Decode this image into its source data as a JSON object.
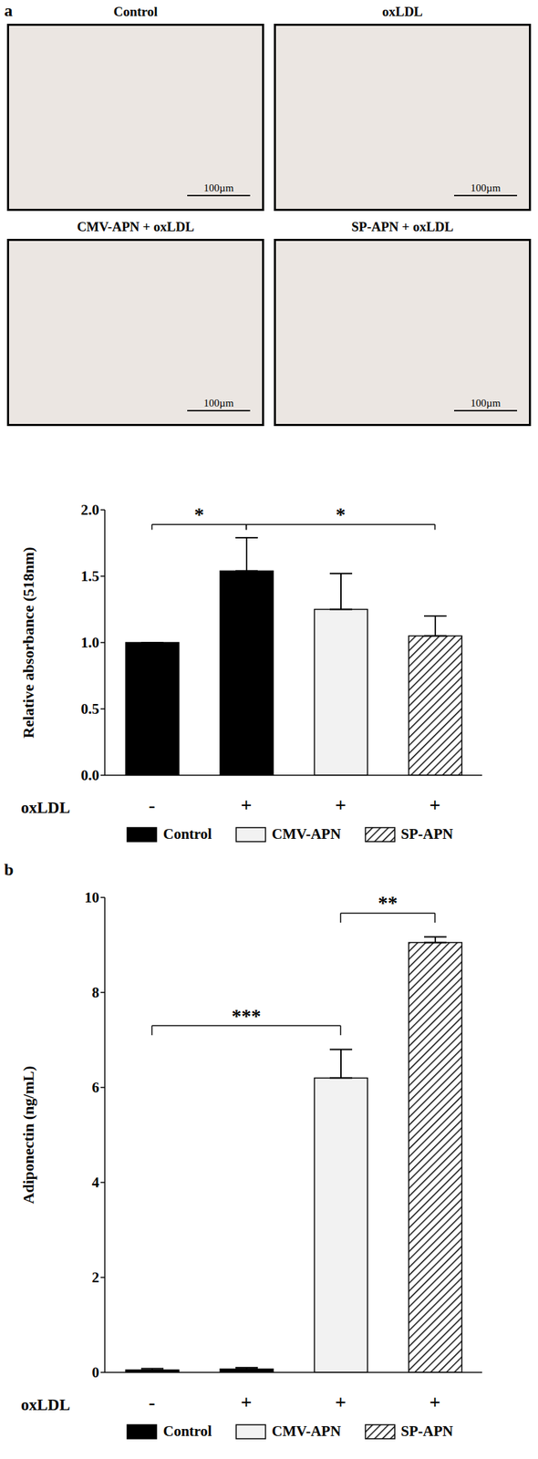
{
  "panel_labels": [
    "a",
    "b"
  ],
  "images": [
    {
      "title": "Control",
      "scale_bar": "100µm"
    },
    {
      "title": "oxLDL",
      "scale_bar": "100µm"
    },
    {
      "title": "CMV-APN + oxLDL",
      "scale_bar": "100µm"
    },
    {
      "title": "SP-APN + oxLDL",
      "scale_bar": "100µm"
    }
  ],
  "chart_data": [
    {
      "type": "bar",
      "x_label": "oxLDL",
      "y_label": "Relative absorbance (518nm)",
      "categories": [
        "-",
        "+",
        "+",
        "+"
      ],
      "series": [
        {
          "name": "Control",
          "color": "#000000",
          "values": [
            1.0,
            1.54,
            null,
            null
          ],
          "errors": [
            0,
            0.25,
            null,
            null
          ]
        },
        {
          "name": "CMV-APN",
          "color": "#f2f2f2",
          "values": [
            null,
            null,
            1.25,
            null
          ],
          "errors": [
            null,
            null,
            0.27,
            null
          ]
        },
        {
          "name": "SP-APN",
          "color": "#000000",
          "values": [
            null,
            null,
            null,
            1.05
          ],
          "errors": [
            null,
            null,
            null,
            0.15
          ]
        }
      ],
      "ylim": [
        0,
        2
      ],
      "yticks": [
        {
          "value": 0,
          "label": "0.0"
        },
        {
          "value": 0.5,
          "label": "0.5"
        },
        {
          "value": 1,
          "label": "1.0"
        },
        {
          "value": 1.5,
          "label": "1.5"
        },
        {
          "value": 2,
          "label": "2.0"
        }
      ],
      "grid": false,
      "significance": [
        {
          "from": 0,
          "to": 1,
          "label": "*"
        },
        {
          "from": 1,
          "to": 3,
          "label": "*"
        }
      ]
    },
    {
      "type": "bar",
      "x_label": "oxLDL",
      "y_label": "Adiponectin (ng/mL)",
      "categories": [
        "-",
        "+",
        "+",
        "+"
      ],
      "series": [
        {
          "name": "Control",
          "color": "#000000",
          "values": [
            0.05,
            0.07,
            null,
            null
          ],
          "errors": [
            0.03,
            0.03,
            null,
            null
          ]
        },
        {
          "name": "CMV-APN",
          "color": "#f2f2f2",
          "values": [
            null,
            null,
            6.2,
            null
          ],
          "errors": [
            null,
            null,
            0.6,
            null
          ]
        },
        {
          "name": "SP-APN",
          "color": "#000000",
          "values": [
            null,
            null,
            null,
            9.05
          ],
          "errors": [
            null,
            null,
            null,
            0.12
          ]
        }
      ],
      "ylim": [
        0,
        10
      ],
      "yticks": [
        0,
        2,
        4,
        6,
        8,
        10
      ],
      "grid": false,
      "significance": [
        {
          "from": 0,
          "to": 2,
          "label": "***"
        },
        {
          "from": 2,
          "to": 3,
          "label": "**"
        }
      ]
    }
  ]
}
